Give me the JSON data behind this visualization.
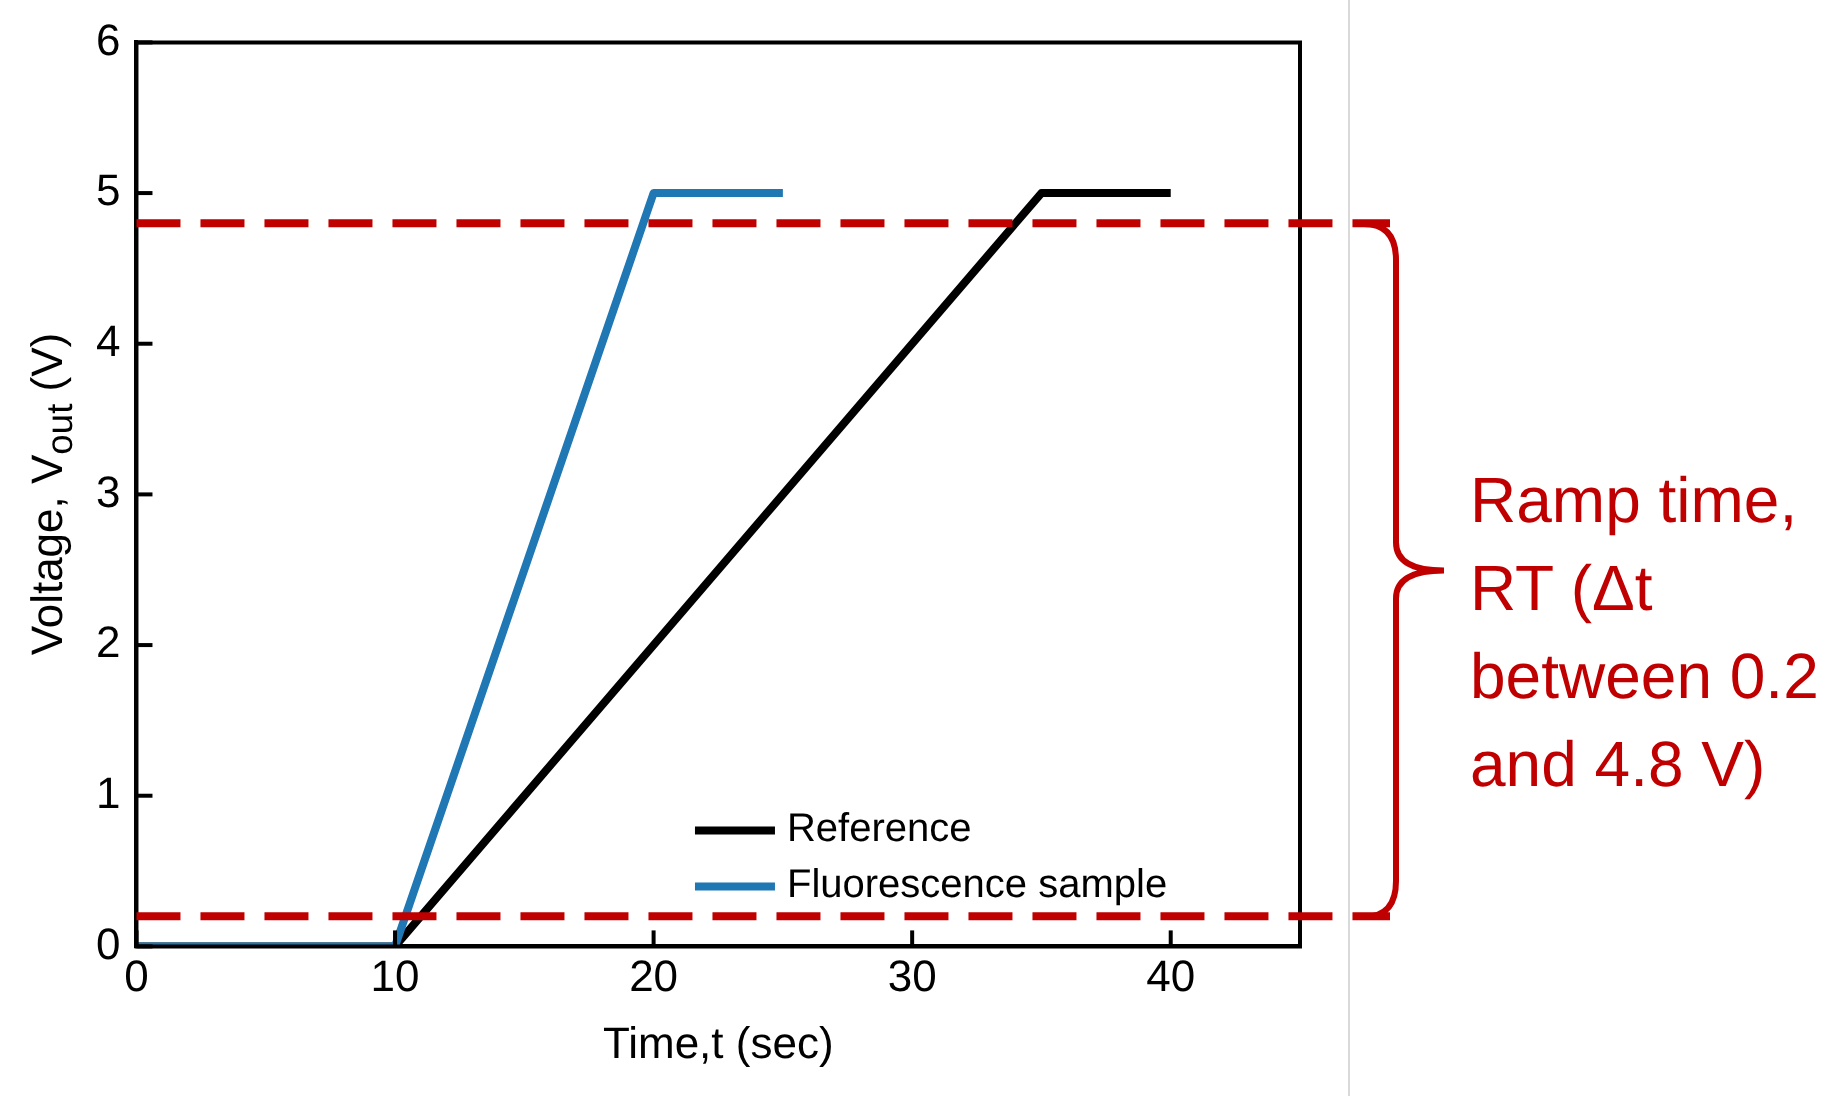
{
  "chart_data": {
    "type": "line",
    "xlabel": "Time,t (sec)",
    "ylabel": "Voltage, V$_{out}$ (V)",
    "xlim": [
      0,
      45
    ],
    "xticks": [
      0,
      10,
      20,
      30,
      40
    ],
    "ylim": [
      0,
      6
    ],
    "yticks": [
      0,
      1,
      2,
      3,
      4,
      5,
      6
    ],
    "grid": false,
    "legend": "bottom",
    "marker": "none",
    "line_style": "solid",
    "series": [
      {
        "name": "Reference",
        "color": "#000000",
        "x": [
          0,
          10,
          35,
          40
        ],
        "values": [
          0,
          0,
          5,
          5
        ]
      },
      {
        "name": "Fluorescence sample",
        "color": "#1f77b4",
        "x": [
          0,
          10,
          20,
          25
        ],
        "values": [
          0,
          0,
          5,
          5
        ]
      }
    ],
    "ref_lines": [
      {
        "axis": "y",
        "value": 4.8,
        "color": "#c00000",
        "line_style": "dashed"
      },
      {
        "axis": "y",
        "value": 0.2,
        "color": "#c00000",
        "line_style": "dashed"
      }
    ],
    "annotations": [
      "Ramp time, RT (Δt between 0.2 and 4.8 V)"
    ]
  }
}
